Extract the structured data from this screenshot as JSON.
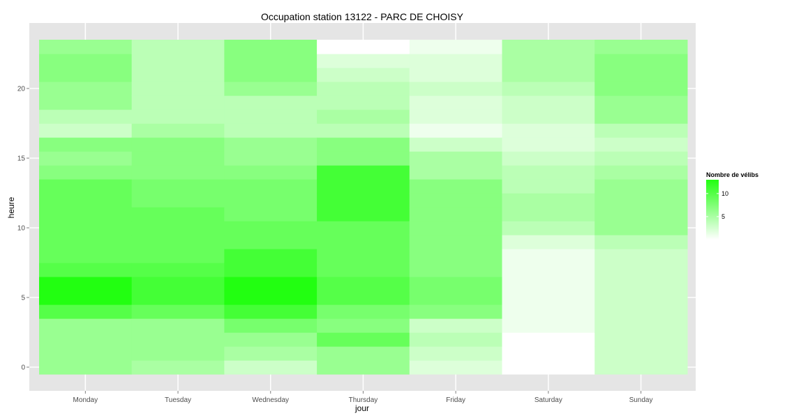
{
  "chart_data": {
    "type": "heatmap",
    "title": "Occupation station 13122 - PARC DE CHOISY",
    "xlabel": "jour",
    "ylabel": "heure",
    "x_categories": [
      "Monday",
      "Tuesday",
      "Wednesday",
      "Thursday",
      "Friday",
      "Saturday",
      "Sunday"
    ],
    "y_range": [
      -0.5,
      23.5
    ],
    "y_ticks": [
      0,
      5,
      10,
      15,
      20
    ],
    "color_low": "#ffffff",
    "color_high": "#22ff11",
    "value_max": 13,
    "legend": {
      "title": "Nombre de vélibs",
      "ticks": [
        5,
        10
      ],
      "position": "right"
    },
    "grid": true,
    "panel_background": "#e5e5e5",
    "grid_color": "#ffffff",
    "values_by_day": {
      "Monday": [
        6,
        6,
        6,
        6,
        10,
        13,
        13,
        10,
        9,
        9,
        9,
        9,
        9,
        9,
        7,
        6,
        7,
        3,
        4,
        6,
        6,
        7,
        7,
        6
      ],
      "Tuesday": [
        5,
        6,
        6,
        6,
        9,
        11,
        11,
        10,
        9,
        9,
        9,
        9,
        8,
        8,
        7,
        7,
        7,
        5,
        4,
        4,
        4,
        4,
        4,
        4
      ],
      "Wednesday": [
        3,
        5,
        6,
        8,
        11,
        13,
        13,
        11,
        11,
        9,
        9,
        8,
        8,
        8,
        7,
        6,
        6,
        4,
        4,
        4,
        6,
        7,
        7,
        7
      ],
      "Thursday": [
        6,
        6,
        9,
        7,
        8,
        10,
        10,
        9,
        9,
        9,
        9,
        11,
        11,
        11,
        11,
        7,
        7,
        4,
        5,
        4,
        4,
        3,
        2,
        0
      ],
      "Friday": [
        2,
        3,
        4,
        3,
        7,
        8,
        8,
        7,
        7,
        7,
        7,
        7,
        7,
        7,
        5,
        5,
        3,
        1,
        2,
        2,
        3,
        2,
        2,
        1
      ],
      "Saturday": [
        0,
        0,
        0,
        1,
        1,
        1,
        1,
        1,
        1,
        2,
        4,
        5,
        5,
        4,
        4,
        3,
        2,
        2,
        3,
        3,
        4,
        5,
        5,
        5
      ],
      "Sunday": [
        3,
        3,
        3,
        3,
        3,
        3,
        3,
        3,
        3,
        4,
        6,
        6,
        6,
        6,
        5,
        4,
        3,
        4,
        6,
        6,
        7,
        7,
        7,
        6
      ]
    }
  }
}
